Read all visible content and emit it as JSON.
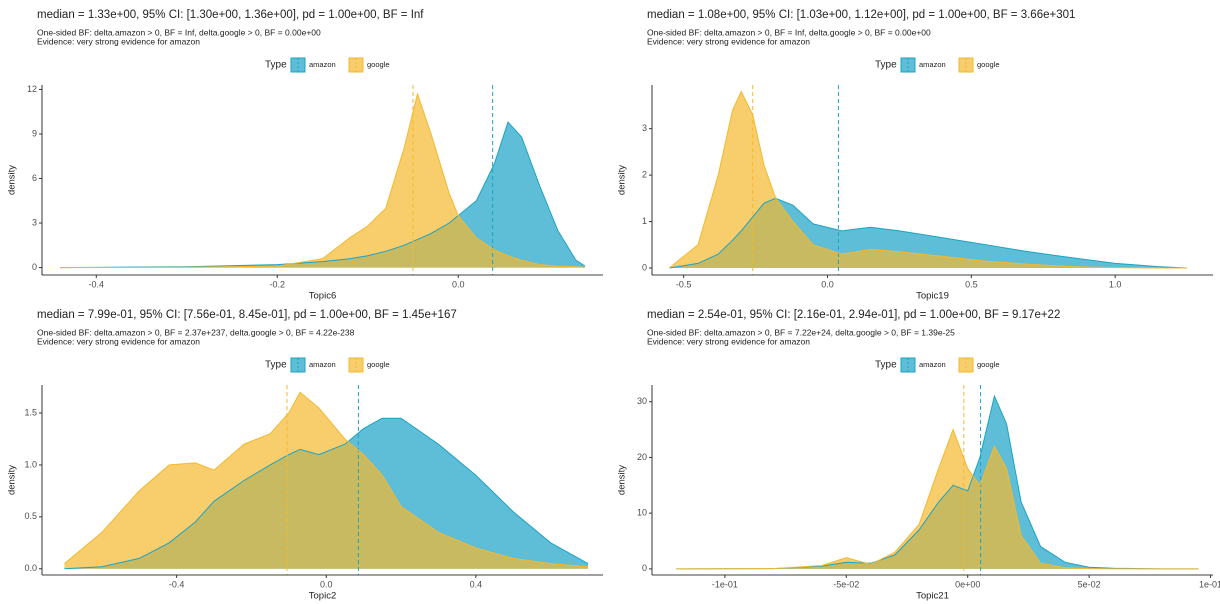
{
  "chart_data": [
    {
      "type": "density",
      "title": "median = 1.33e+00, 95% CI: [1.30e+00, 1.36e+00], pd = 1.00e+00, BF = Inf",
      "subtitle": "One-sided BF: delta.amazon > 0, BF = Inf, delta.google > 0, BF = 0.00e+00",
      "annotation": "Evidence: very strong evidence for amazon",
      "legend_title": "Type",
      "xlabel": "Topic6",
      "ylabel": "density",
      "x": [
        -0.44,
        -0.3,
        -0.2,
        -0.15,
        -0.12,
        -0.1,
        -0.08,
        -0.06,
        -0.045,
        -0.03,
        -0.01,
        0,
        0.02,
        0.04,
        0.055,
        0.07,
        0.09,
        0.11,
        0.13,
        0.14
      ],
      "series": [
        {
          "name": "amazon",
          "color": "#1ba3c6",
          "median": 0.038,
          "values": [
            0,
            0.05,
            0.2,
            0.4,
            0.6,
            0.8,
            1.1,
            1.5,
            1.9,
            2.3,
            3.0,
            3.5,
            4.5,
            7.0,
            9.8,
            8.8,
            5.5,
            2.5,
            0.5,
            0.1
          ]
        },
        {
          "name": "google",
          "color": "#f5b82e",
          "median": -0.05,
          "values": [
            0,
            0.02,
            0.1,
            0.6,
            2.0,
            2.8,
            4.0,
            8.0,
            11.7,
            9.0,
            5.0,
            3.5,
            2.0,
            1.2,
            0.8,
            0.5,
            0.2,
            0.1,
            0.05,
            0.02
          ]
        }
      ],
      "xlim": [
        -0.46,
        0.16
      ],
      "xticks": [
        -0.4,
        -0.2,
        {
          "value": 0,
          "label": "0.0"
        }
      ],
      "ylim": [
        -0.5,
        12.3
      ],
      "yticks": [
        0,
        3,
        6,
        9,
        12
      ]
    },
    {
      "type": "density",
      "title": "median = 1.08e+00, 95% CI: [1.03e+00, 1.12e+00], pd = 1.00e+00, BF = 3.66e+301",
      "subtitle": "One-sided BF: delta.amazon > 0, BF = Inf, delta.google > 0, BF = 0.00e+00",
      "annotation": "Evidence: very strong evidence for amazon",
      "legend_title": "Type",
      "xlabel": "Topic19",
      "ylabel": "density",
      "x": [
        -0.55,
        -0.45,
        -0.38,
        -0.33,
        -0.3,
        -0.26,
        -0.22,
        -0.18,
        -0.12,
        -0.05,
        0.05,
        0.15,
        0.25,
        0.4,
        0.55,
        0.7,
        0.85,
        1.0,
        1.15,
        1.25
      ],
      "series": [
        {
          "name": "amazon",
          "color": "#1ba3c6",
          "median": 0.038,
          "values": [
            0,
            0.1,
            0.3,
            0.6,
            0.8,
            1.1,
            1.4,
            1.5,
            1.35,
            0.95,
            0.8,
            0.88,
            0.8,
            0.65,
            0.5,
            0.35,
            0.22,
            0.1,
            0.03,
            0
          ]
        },
        {
          "name": "google",
          "color": "#f5b82e",
          "median": -0.26,
          "values": [
            0,
            0.5,
            2.0,
            3.4,
            3.8,
            3.3,
            2.2,
            1.5,
            1.0,
            0.5,
            0.3,
            0.4,
            0.35,
            0.25,
            0.15,
            0.08,
            0.03,
            0.01,
            0,
            0
          ]
        }
      ],
      "xlim": [
        -0.61,
        1.34
      ],
      "xticks": [
        -0.5,
        {
          "value": 0,
          "label": "0.0"
        },
        0.5,
        {
          "value": 1,
          "label": "1.0"
        }
      ],
      "ylim": [
        -0.15,
        3.94
      ],
      "yticks": [
        0,
        1,
        2,
        3
      ]
    },
    {
      "type": "density",
      "title": "median = 7.99e-01, 95% CI: [7.56e-01, 8.45e-01], pd = 1.00e+00, BF = 1.45e+167",
      "subtitle": "One-sided BF: delta.amazon > 0, BF = 2.37e+237, delta.google > 0, BF = 4.22e-238",
      "annotation": "Evidence: very strong evidence for amazon",
      "legend_title": "Type",
      "xlabel": "Topic2",
      "ylabel": "density",
      "x": [
        -0.7,
        -0.6,
        -0.5,
        -0.42,
        -0.35,
        -0.3,
        -0.22,
        -0.15,
        -0.1,
        -0.07,
        -0.02,
        0.05,
        0.1,
        0.15,
        0.2,
        0.3,
        0.4,
        0.5,
        0.6,
        0.7
      ],
      "series": [
        {
          "name": "amazon",
          "color": "#1ba3c6",
          "median": 0.086,
          "values": [
            0,
            0.02,
            0.1,
            0.25,
            0.45,
            0.65,
            0.85,
            1.0,
            1.1,
            1.15,
            1.1,
            1.2,
            1.35,
            1.45,
            1.45,
            1.2,
            0.9,
            0.55,
            0.25,
            0.05
          ]
        },
        {
          "name": "google",
          "color": "#f5b82e",
          "median": -0.105,
          "values": [
            0.05,
            0.35,
            0.75,
            1.0,
            1.02,
            0.95,
            1.2,
            1.3,
            1.5,
            1.7,
            1.55,
            1.25,
            1.1,
            0.9,
            0.6,
            0.35,
            0.2,
            0.1,
            0.05,
            0.02
          ]
        }
      ],
      "xlim": [
        -0.76,
        0.74
      ],
      "xticks": [
        -0.4,
        {
          "value": 0,
          "label": "0.0"
        },
        0.4
      ],
      "ylim": [
        -0.06,
        1.77
      ],
      "yticks": [
        {
          "value": 0,
          "label": "0.0"
        },
        0.5,
        {
          "value": 1,
          "label": "1.0"
        },
        1.5
      ]
    },
    {
      "type": "density",
      "title": "median = 2.54e-01, 95% CI: [2.16e-01, 2.94e-01], pd = 1.00e+00, BF = 9.17e+22",
      "subtitle": "One-sided BF: delta.amazon > 0, BF = 7.22e+24, delta.google > 0, BF = 1.39e-25",
      "annotation": "Evidence: very strong evidence for amazon",
      "legend_title": "Type",
      "xlabel": "Topic21",
      "ylabel": "density",
      "x": [
        -0.12,
        -0.08,
        -0.06,
        -0.05,
        -0.04,
        -0.03,
        -0.02,
        -0.012,
        -0.006,
        0,
        0.005,
        0.011,
        0.016,
        0.022,
        0.03,
        0.04,
        0.05,
        0.06,
        0.08,
        0.095
      ],
      "series": [
        {
          "name": "amazon",
          "color": "#1ba3c6",
          "median": 0.0053,
          "values": [
            0,
            0.05,
            0.5,
            1.2,
            1.0,
            2.5,
            7,
            12,
            15,
            14,
            20,
            31,
            26,
            12,
            4,
            1.2,
            0.3,
            0.1,
            0,
            0
          ]
        },
        {
          "name": "google",
          "color": "#f5b82e",
          "median": -0.0016,
          "values": [
            0,
            0.05,
            0.6,
            2.0,
            0.8,
            3,
            8,
            18,
            25,
            18,
            15,
            22,
            18,
            6,
            1,
            0.2,
            0.05,
            0,
            0,
            0
          ]
        }
      ],
      "xlim": [
        -0.13,
        0.101
      ],
      "xticks": [
        {
          "value": -0.1,
          "label": "-1e-01"
        },
        {
          "value": -0.05,
          "label": "-5e-02"
        },
        {
          "value": 0,
          "label": "0e+00"
        },
        {
          "value": 0.05,
          "label": "5e-02"
        },
        {
          "value": 0.1,
          "label": "1e-01"
        }
      ],
      "ylim": [
        -1.1,
        33
      ],
      "yticks": [
        0,
        10,
        20,
        30
      ]
    }
  ]
}
